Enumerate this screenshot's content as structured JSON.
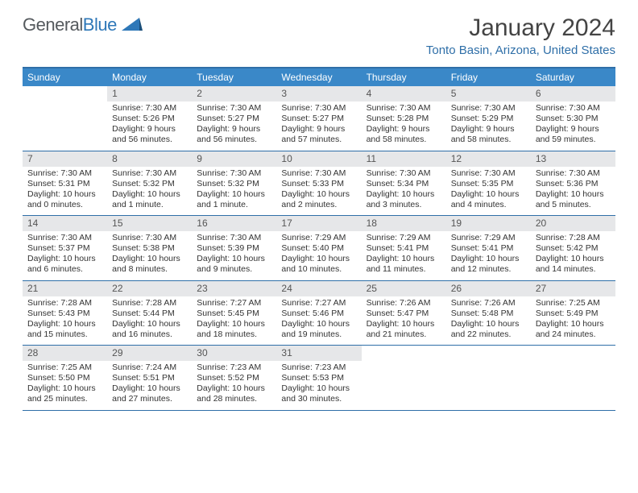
{
  "logo": {
    "text1": "General",
    "text2": "Blue"
  },
  "title": "January 2024",
  "location": "Tonto Basin, Arizona, United States",
  "colors": {
    "header_bg": "#3a88c8",
    "header_text": "#ffffff",
    "rule": "#2f6fa8",
    "daynum_bg": "#e6e7e9",
    "body_text": "#333333",
    "location_text": "#2f6fa8"
  },
  "day_headers": [
    "Sunday",
    "Monday",
    "Tuesday",
    "Wednesday",
    "Thursday",
    "Friday",
    "Saturday"
  ],
  "weeks": [
    [
      {
        "n": "",
        "sr": "",
        "ss": "",
        "dl1": "",
        "dl2": ""
      },
      {
        "n": "1",
        "sr": "Sunrise: 7:30 AM",
        "ss": "Sunset: 5:26 PM",
        "dl1": "Daylight: 9 hours",
        "dl2": "and 56 minutes."
      },
      {
        "n": "2",
        "sr": "Sunrise: 7:30 AM",
        "ss": "Sunset: 5:27 PM",
        "dl1": "Daylight: 9 hours",
        "dl2": "and 56 minutes."
      },
      {
        "n": "3",
        "sr": "Sunrise: 7:30 AM",
        "ss": "Sunset: 5:27 PM",
        "dl1": "Daylight: 9 hours",
        "dl2": "and 57 minutes."
      },
      {
        "n": "4",
        "sr": "Sunrise: 7:30 AM",
        "ss": "Sunset: 5:28 PM",
        "dl1": "Daylight: 9 hours",
        "dl2": "and 58 minutes."
      },
      {
        "n": "5",
        "sr": "Sunrise: 7:30 AM",
        "ss": "Sunset: 5:29 PM",
        "dl1": "Daylight: 9 hours",
        "dl2": "and 58 minutes."
      },
      {
        "n": "6",
        "sr": "Sunrise: 7:30 AM",
        "ss": "Sunset: 5:30 PM",
        "dl1": "Daylight: 9 hours",
        "dl2": "and 59 minutes."
      }
    ],
    [
      {
        "n": "7",
        "sr": "Sunrise: 7:30 AM",
        "ss": "Sunset: 5:31 PM",
        "dl1": "Daylight: 10 hours",
        "dl2": "and 0 minutes."
      },
      {
        "n": "8",
        "sr": "Sunrise: 7:30 AM",
        "ss": "Sunset: 5:32 PM",
        "dl1": "Daylight: 10 hours",
        "dl2": "and 1 minute."
      },
      {
        "n": "9",
        "sr": "Sunrise: 7:30 AM",
        "ss": "Sunset: 5:32 PM",
        "dl1": "Daylight: 10 hours",
        "dl2": "and 1 minute."
      },
      {
        "n": "10",
        "sr": "Sunrise: 7:30 AM",
        "ss": "Sunset: 5:33 PM",
        "dl1": "Daylight: 10 hours",
        "dl2": "and 2 minutes."
      },
      {
        "n": "11",
        "sr": "Sunrise: 7:30 AM",
        "ss": "Sunset: 5:34 PM",
        "dl1": "Daylight: 10 hours",
        "dl2": "and 3 minutes."
      },
      {
        "n": "12",
        "sr": "Sunrise: 7:30 AM",
        "ss": "Sunset: 5:35 PM",
        "dl1": "Daylight: 10 hours",
        "dl2": "and 4 minutes."
      },
      {
        "n": "13",
        "sr": "Sunrise: 7:30 AM",
        "ss": "Sunset: 5:36 PM",
        "dl1": "Daylight: 10 hours",
        "dl2": "and 5 minutes."
      }
    ],
    [
      {
        "n": "14",
        "sr": "Sunrise: 7:30 AM",
        "ss": "Sunset: 5:37 PM",
        "dl1": "Daylight: 10 hours",
        "dl2": "and 6 minutes."
      },
      {
        "n": "15",
        "sr": "Sunrise: 7:30 AM",
        "ss": "Sunset: 5:38 PM",
        "dl1": "Daylight: 10 hours",
        "dl2": "and 8 minutes."
      },
      {
        "n": "16",
        "sr": "Sunrise: 7:30 AM",
        "ss": "Sunset: 5:39 PM",
        "dl1": "Daylight: 10 hours",
        "dl2": "and 9 minutes."
      },
      {
        "n": "17",
        "sr": "Sunrise: 7:29 AM",
        "ss": "Sunset: 5:40 PM",
        "dl1": "Daylight: 10 hours",
        "dl2": "and 10 minutes."
      },
      {
        "n": "18",
        "sr": "Sunrise: 7:29 AM",
        "ss": "Sunset: 5:41 PM",
        "dl1": "Daylight: 10 hours",
        "dl2": "and 11 minutes."
      },
      {
        "n": "19",
        "sr": "Sunrise: 7:29 AM",
        "ss": "Sunset: 5:41 PM",
        "dl1": "Daylight: 10 hours",
        "dl2": "and 12 minutes."
      },
      {
        "n": "20",
        "sr": "Sunrise: 7:28 AM",
        "ss": "Sunset: 5:42 PM",
        "dl1": "Daylight: 10 hours",
        "dl2": "and 14 minutes."
      }
    ],
    [
      {
        "n": "21",
        "sr": "Sunrise: 7:28 AM",
        "ss": "Sunset: 5:43 PM",
        "dl1": "Daylight: 10 hours",
        "dl2": "and 15 minutes."
      },
      {
        "n": "22",
        "sr": "Sunrise: 7:28 AM",
        "ss": "Sunset: 5:44 PM",
        "dl1": "Daylight: 10 hours",
        "dl2": "and 16 minutes."
      },
      {
        "n": "23",
        "sr": "Sunrise: 7:27 AM",
        "ss": "Sunset: 5:45 PM",
        "dl1": "Daylight: 10 hours",
        "dl2": "and 18 minutes."
      },
      {
        "n": "24",
        "sr": "Sunrise: 7:27 AM",
        "ss": "Sunset: 5:46 PM",
        "dl1": "Daylight: 10 hours",
        "dl2": "and 19 minutes."
      },
      {
        "n": "25",
        "sr": "Sunrise: 7:26 AM",
        "ss": "Sunset: 5:47 PM",
        "dl1": "Daylight: 10 hours",
        "dl2": "and 21 minutes."
      },
      {
        "n": "26",
        "sr": "Sunrise: 7:26 AM",
        "ss": "Sunset: 5:48 PM",
        "dl1": "Daylight: 10 hours",
        "dl2": "and 22 minutes."
      },
      {
        "n": "27",
        "sr": "Sunrise: 7:25 AM",
        "ss": "Sunset: 5:49 PM",
        "dl1": "Daylight: 10 hours",
        "dl2": "and 24 minutes."
      }
    ],
    [
      {
        "n": "28",
        "sr": "Sunrise: 7:25 AM",
        "ss": "Sunset: 5:50 PM",
        "dl1": "Daylight: 10 hours",
        "dl2": "and 25 minutes."
      },
      {
        "n": "29",
        "sr": "Sunrise: 7:24 AM",
        "ss": "Sunset: 5:51 PM",
        "dl1": "Daylight: 10 hours",
        "dl2": "and 27 minutes."
      },
      {
        "n": "30",
        "sr": "Sunrise: 7:23 AM",
        "ss": "Sunset: 5:52 PM",
        "dl1": "Daylight: 10 hours",
        "dl2": "and 28 minutes."
      },
      {
        "n": "31",
        "sr": "Sunrise: 7:23 AM",
        "ss": "Sunset: 5:53 PM",
        "dl1": "Daylight: 10 hours",
        "dl2": "and 30 minutes."
      },
      {
        "n": "",
        "sr": "",
        "ss": "",
        "dl1": "",
        "dl2": ""
      },
      {
        "n": "",
        "sr": "",
        "ss": "",
        "dl1": "",
        "dl2": ""
      },
      {
        "n": "",
        "sr": "",
        "ss": "",
        "dl1": "",
        "dl2": ""
      }
    ]
  ]
}
